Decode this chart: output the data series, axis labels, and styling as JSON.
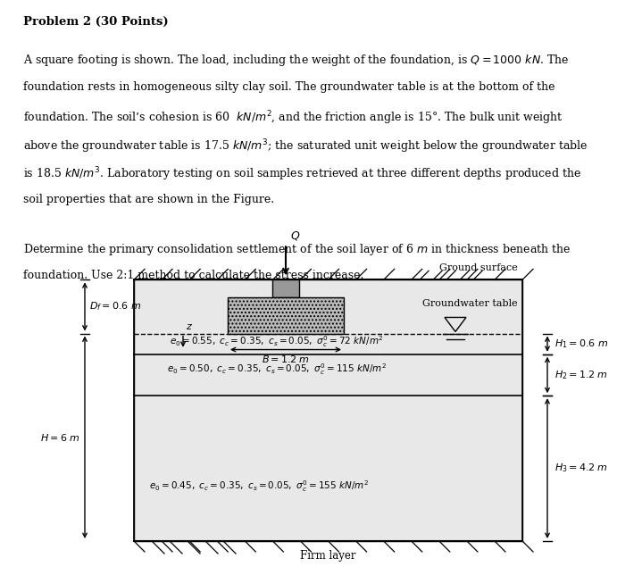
{
  "background_color": "#ffffff",
  "fig_width": 6.3,
  "fig_height": 6.24,
  "text": {
    "title": "Problem 2 (30 Points)",
    "lines_p1": [
      "A square footing is shown. The load, including the weight of the foundation, is $Q = 1000\\ kN$. The",
      "foundation rests in homogeneous silty clay soil. The groundwater table is at the bottom of the",
      "foundation. The soil’s cohesion is 60  $kN/m^2$, and the friction angle is 15°. The bulk unit weight",
      "above the groundwater table is 17.5 $kN/m^3$; the saturated unit weight below the groundwater table",
      "is 18.5 $kN/m^3$. Laboratory testing on soil samples retrieved at three different depths produced the",
      "soil properties that are shown in the Figure."
    ],
    "lines_p2": [
      "Determine the primary consolidation settlement of the soil layer of 6 $m$ in thickness beneath the",
      "foundation. Use 2:1 method to calculate the stress increase."
    ]
  },
  "diagram": {
    "lc": "#000000",
    "soil_color": "#e8e8e8",
    "footing_color": "#bbbbbb",
    "stem_color": "#999999",
    "layer1_label": "$e_0 = 0.55,\\ c_c = 0.35,\\ c_s = 0.05,\\ \\sigma^{\\prime}_c = 72\\ kN/m^2$",
    "layer2_label": "$e_0 = 0.50,\\ c_c = 0.35,\\ c_s = 0.05,\\ \\sigma^{\\prime}_c = 115\\ kN/m^2$",
    "layer3_label": "$e_0 = 0.45,\\ c_c = 0.35,\\ c_s = 0.05,\\ \\sigma^{\\prime}_c = 155\\ kN/m^2$",
    "Df_label": "$D_f = 0.6\\ m$",
    "B_label": "$B = 1.2\\ m$",
    "H_label": "$H = 6\\ m$",
    "H1_label": "$H_1 = 0.6\\ m$",
    "H2_label": "$H_2 = 1.2\\ m$",
    "H3_label": "$H_3 = 4.2\\ m$",
    "Q_label": "$Q$",
    "z_label": "$z$",
    "ground_surface_label": "Ground surface",
    "groundwater_label": "Groundwater table",
    "firm_layer_label": "Firm layer"
  }
}
